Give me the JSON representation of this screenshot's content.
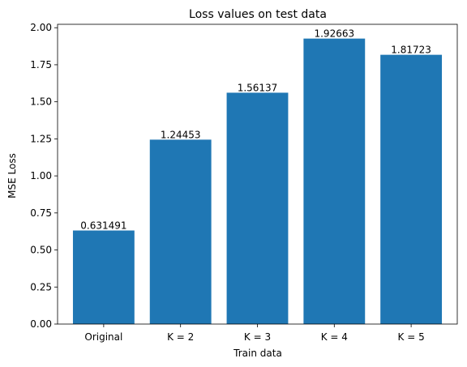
{
  "chart_data": {
    "type": "bar",
    "title": "Loss values on test data",
    "xlabel": "Train data",
    "ylabel": "MSE Loss",
    "categories": [
      "Original",
      "K = 2",
      "K = 3",
      "K = 4",
      "K = 5"
    ],
    "values": [
      0.631491,
      1.24453,
      1.56137,
      1.92663,
      1.81723
    ],
    "data_labels": [
      "0.631491",
      "1.24453",
      "1.56137",
      "1.92663",
      "1.81723"
    ],
    "ylim": [
      0,
      2.023
    ],
    "yticks": [
      0,
      0.25,
      0.5,
      0.75,
      1.0,
      1.25,
      1.5,
      1.75,
      2.0
    ],
    "ytick_labels": [
      "0.00",
      "0.25",
      "0.50",
      "0.75",
      "1.00",
      "1.25",
      "1.50",
      "1.75",
      "2.00"
    ],
    "bar_color": "#1f77b4",
    "grid": false,
    "legend": "none"
  }
}
